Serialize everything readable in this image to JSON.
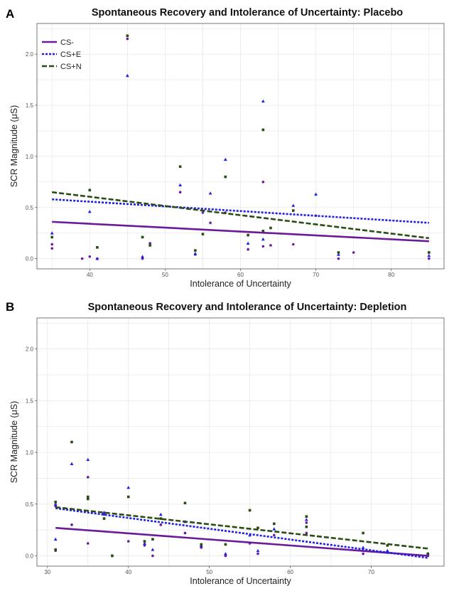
{
  "colors": {
    "CS-": "#6a1a9a",
    "CS+E": "#1f1fe6",
    "CS+N": "#2a4d14",
    "grid": "#e6e6e6",
    "panel_border": "#555555"
  },
  "chart_data": [
    {
      "panel_label": "A",
      "type": "scatter",
      "title": "Spontaneous Recovery and Intolerance of Uncertainty: Placebo",
      "xlabel": "Intolerance of Uncertainty",
      "ylabel": "SCR Magnitude (μS)",
      "xlim": [
        33,
        87
      ],
      "ylim": [
        -0.1,
        2.3
      ],
      "xticks": [
        40,
        50,
        60,
        70,
        80
      ],
      "yticks": [
        0.0,
        0.5,
        1.0,
        1.5,
        2.0
      ],
      "ytick_labels": [
        "0.0",
        "0.5",
        "1.0",
        "1.5",
        "2.0"
      ],
      "grid": true,
      "legend": {
        "placement": "top-left",
        "entries": [
          "CS-",
          "CS+E",
          "CS+N"
        ]
      },
      "series": [
        {
          "name": "CS-",
          "marker": "circle",
          "line": "solid",
          "fit": [
            [
              35,
              0.36
            ],
            [
              85,
              0.17
            ]
          ],
          "points": [
            [
              35,
              0.1
            ],
            [
              35,
              0.14
            ],
            [
              39,
              0.0
            ],
            [
              40,
              0.02
            ],
            [
              41,
              0.0
            ],
            [
              45,
              2.15
            ],
            [
              47,
              0.0
            ],
            [
              48,
              0.15
            ],
            [
              52,
              0.65
            ],
            [
              54,
              0.04
            ],
            [
              55,
              0.45
            ],
            [
              56,
              0.35
            ],
            [
              58,
              0.45
            ],
            [
              61,
              0.09
            ],
            [
              63,
              0.75
            ],
            [
              63,
              0.12
            ],
            [
              64,
              0.13
            ],
            [
              67,
              0.14
            ],
            [
              70,
              0.42
            ],
            [
              73,
              0.0
            ],
            [
              75,
              0.06
            ],
            [
              85,
              0.0
            ]
          ]
        },
        {
          "name": "CS+E",
          "marker": "triangle",
          "line": "dotted",
          "fit": [
            [
              35,
              0.58
            ],
            [
              85,
              0.35
            ]
          ],
          "points": [
            [
              35,
              0.25
            ],
            [
              40,
              0.46
            ],
            [
              41,
              0.0
            ],
            [
              45,
              1.79
            ],
            [
              47,
              0.02
            ],
            [
              52,
              0.72
            ],
            [
              54,
              0.05
            ],
            [
              56,
              0.64
            ],
            [
              58,
              0.97
            ],
            [
              61,
              0.15
            ],
            [
              63,
              1.54
            ],
            [
              63,
              0.19
            ],
            [
              67,
              0.52
            ],
            [
              70,
              0.63
            ],
            [
              73,
              0.04
            ],
            [
              85,
              0.03
            ]
          ]
        },
        {
          "name": "CS+N",
          "marker": "square",
          "line": "dashed",
          "fit": [
            [
              35,
              0.65
            ],
            [
              85,
              0.2
            ]
          ],
          "points": [
            [
              35,
              0.21
            ],
            [
              40,
              0.67
            ],
            [
              41,
              0.11
            ],
            [
              45,
              2.18
            ],
            [
              47,
              0.21
            ],
            [
              48,
              0.13
            ],
            [
              52,
              0.9
            ],
            [
              54,
              0.08
            ],
            [
              55,
              0.24
            ],
            [
              58,
              0.8
            ],
            [
              61,
              0.23
            ],
            [
              63,
              1.26
            ],
            [
              63,
              0.27
            ],
            [
              64,
              0.3
            ],
            [
              67,
              0.47
            ],
            [
              73,
              0.06
            ],
            [
              85,
              0.06
            ]
          ]
        }
      ]
    },
    {
      "panel_label": "B",
      "type": "scatter",
      "title": "Spontaneous Recovery and Intolerance of Uncertainty: Depletion",
      "xlabel": "Intolerance of Uncertainty",
      "ylabel": "SCR Magnitude (μS)",
      "xlim": [
        28.7,
        79
      ],
      "ylim": [
        -0.1,
        2.3
      ],
      "xticks": [
        30,
        40,
        50,
        60,
        70
      ],
      "yticks": [
        0.0,
        0.5,
        1.0,
        1.5,
        2.0
      ],
      "ytick_labels": [
        "0.0",
        "0.5",
        "1.0",
        "1.5",
        "2.0"
      ],
      "grid": true,
      "series": [
        {
          "name": "CS-",
          "marker": "circle",
          "line": "solid",
          "fit": [
            [
              31,
              0.27
            ],
            [
              77,
              0.0
            ]
          ],
          "points": [
            [
              31,
              0.05
            ],
            [
              31,
              0.48
            ],
            [
              33,
              0.3
            ],
            [
              35,
              0.76
            ],
            [
              35,
              0.12
            ],
            [
              37,
              0.4
            ],
            [
              38,
              0.0
            ],
            [
              40,
              0.14
            ],
            [
              42,
              0.1
            ],
            [
              43,
              0.0
            ],
            [
              44,
              0.3
            ],
            [
              47,
              0.22
            ],
            [
              49,
              0.08
            ],
            [
              52,
              0.0
            ],
            [
              55,
              0.12
            ],
            [
              56,
              0.02
            ],
            [
              58,
              0.2
            ],
            [
              62,
              0.22
            ],
            [
              62,
              0.32
            ],
            [
              69,
              0.02
            ],
            [
              72,
              0.03
            ],
            [
              77,
              0.0
            ]
          ]
        },
        {
          "name": "CS+E",
          "marker": "triangle",
          "line": "dotted",
          "fit": [
            [
              31,
              0.46
            ],
            [
              77,
              -0.02
            ]
          ],
          "points": [
            [
              31,
              0.16
            ],
            [
              31,
              0.5
            ],
            [
              33,
              0.89
            ],
            [
              35,
              0.93
            ],
            [
              37,
              0.42
            ],
            [
              40,
              0.66
            ],
            [
              42,
              0.12
            ],
            [
              43,
              0.06
            ],
            [
              44,
              0.4
            ],
            [
              47,
              0.33
            ],
            [
              49,
              0.1
            ],
            [
              52,
              0.02
            ],
            [
              55,
              0.2
            ],
            [
              56,
              0.05
            ],
            [
              58,
              0.26
            ],
            [
              62,
              0.35
            ],
            [
              69,
              0.08
            ],
            [
              72,
              0.05
            ],
            [
              77,
              0.02
            ]
          ]
        },
        {
          "name": "CS+N",
          "marker": "square",
          "line": "dashed",
          "fit": [
            [
              31,
              0.47
            ],
            [
              77,
              0.07
            ]
          ],
          "points": [
            [
              31,
              0.06
            ],
            [
              31,
              0.52
            ],
            [
              33,
              1.1
            ],
            [
              35,
              0.57
            ],
            [
              35,
              0.55
            ],
            [
              37,
              0.36
            ],
            [
              38,
              0.0
            ],
            [
              40,
              0.57
            ],
            [
              42,
              0.14
            ],
            [
              43,
              0.16
            ],
            [
              44,
              0.36
            ],
            [
              47,
              0.51
            ],
            [
              49,
              0.11
            ],
            [
              52,
              0.11
            ],
            [
              55,
              0.44
            ],
            [
              56,
              0.27
            ],
            [
              58,
              0.31
            ],
            [
              62,
              0.38
            ],
            [
              62,
              0.28
            ],
            [
              69,
              0.22
            ],
            [
              72,
              0.1
            ],
            [
              77,
              0.02
            ]
          ]
        }
      ]
    }
  ]
}
